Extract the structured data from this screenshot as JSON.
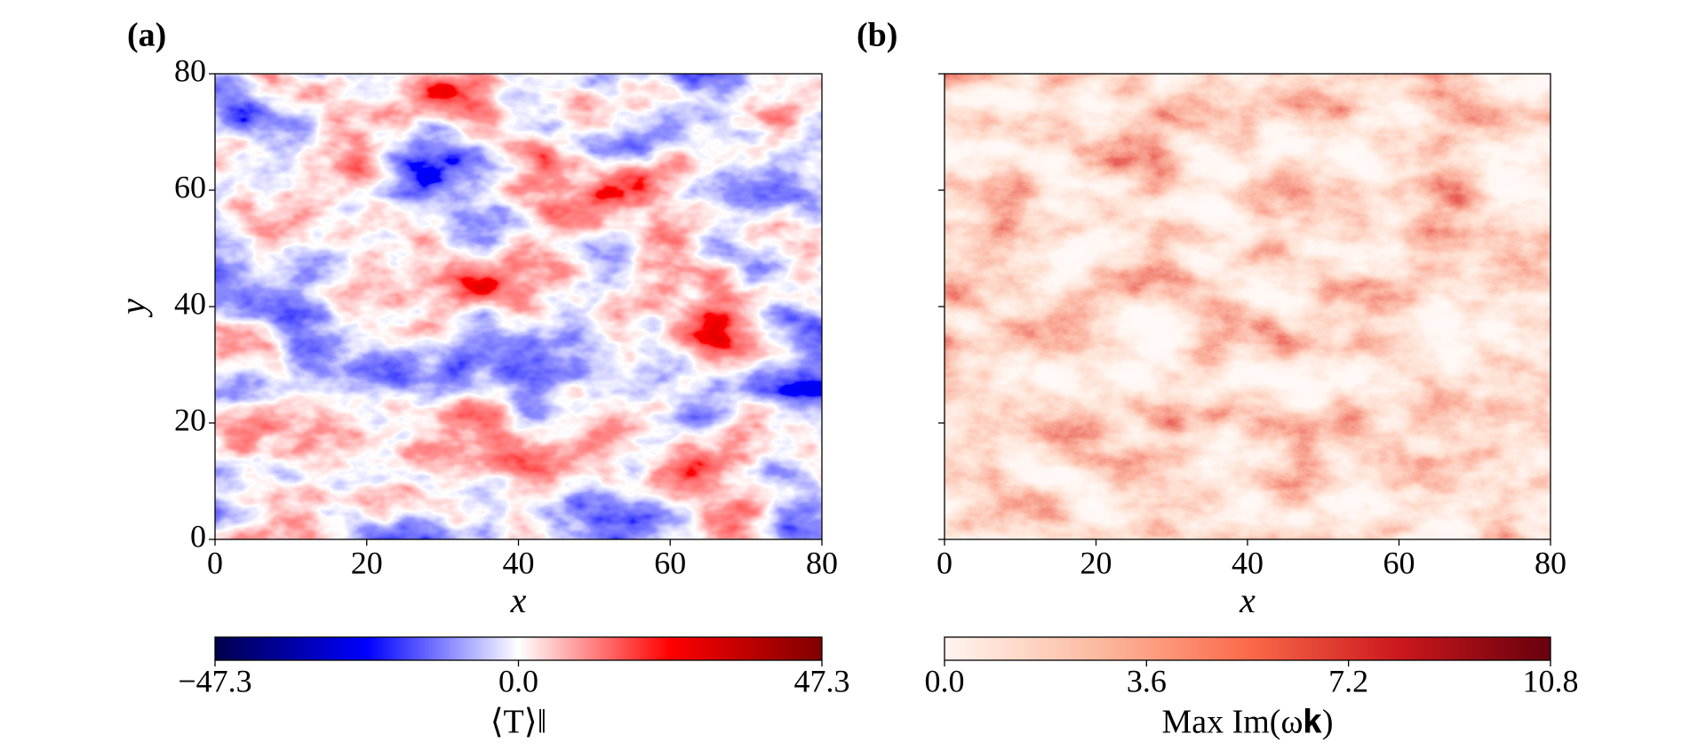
{
  "chart_data": [
    {
      "type": "heatmap",
      "panel_label": "(a)",
      "xlabel": "x",
      "ylabel": "y",
      "xlim": [
        0,
        80
      ],
      "ylim": [
        0,
        80
      ],
      "xticks": [
        0,
        20,
        40,
        60,
        80
      ],
      "yticks": [
        0,
        20,
        40,
        60,
        80
      ],
      "colorbar": {
        "label": "⟨T⟩‖",
        "clim": [
          -47.3,
          47.3
        ],
        "ticks": [
          {
            "value": -47.3,
            "label": "−47.3"
          },
          {
            "value": 0,
            "label": "0.0"
          },
          47.3
        ],
        "colors": [
          "#00004c",
          "#0000ff",
          "#ffffff",
          "#ff0000",
          "#7f0000"
        ]
      }
    },
    {
      "type": "heatmap",
      "panel_label": "(b)",
      "xlabel": "x",
      "xlim": [
        0,
        80
      ],
      "ylim": [
        0,
        80
      ],
      "xticks": [
        0,
        20,
        40,
        60,
        80
      ],
      "yticks": [
        0,
        20,
        40,
        60,
        80
      ],
      "colorbar": {
        "label": "Max Im(ω𝐤)",
        "clim": [
          0,
          10.8
        ],
        "ticks": [
          {
            "value": 0,
            "label": "0.0"
          },
          3.6,
          7.2,
          10.8
        ],
        "colors": [
          "#fff5f0",
          "#fcbba1",
          "#fb6a4a",
          "#cb181d",
          "#67000d"
        ]
      }
    }
  ]
}
